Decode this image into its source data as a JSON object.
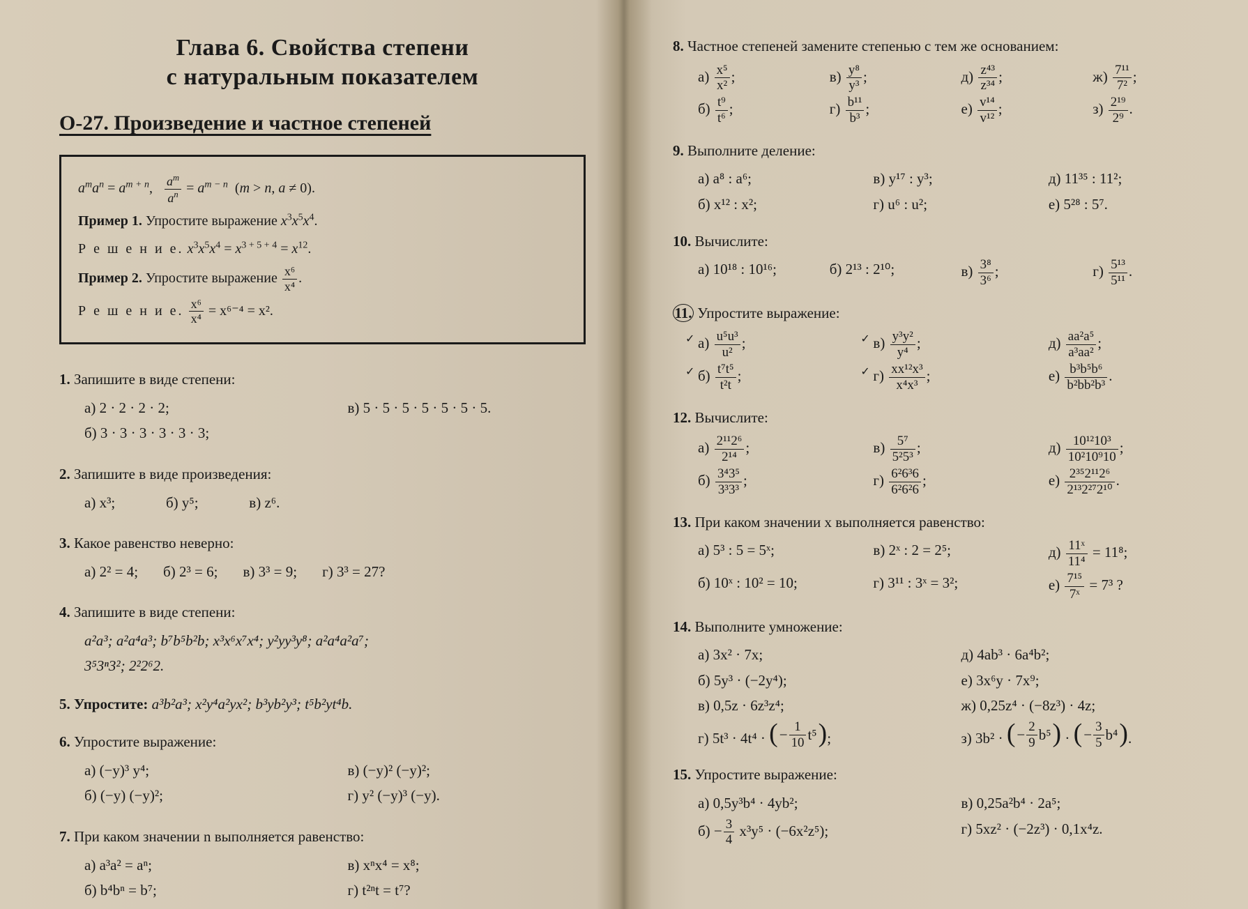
{
  "colors": {
    "paper": "#d4c9b8",
    "ink": "#1a1a1a"
  },
  "typography": {
    "body_pt": 21,
    "h1_pt": 34,
    "h2_pt": 30,
    "boxed_pt": 20
  },
  "left": {
    "chapter_line1": "Глава 6. Свойства степени",
    "chapter_line2": "с натуральным показателем",
    "section": "О-27. Произведение и частное степеней",
    "box": {
      "rule": "aᵐaⁿ = aᵐ⁺ⁿ,   aᵐ / aⁿ = aᵐ⁻ⁿ  (m > n, a ≠ 0).",
      "ex1_label": "Пример 1.",
      "ex1_task": "Упростите выражение x³x⁵x⁴.",
      "ex1_sol_label": "Р е ш е н и е.",
      "ex1_sol": "x³x⁵x⁴ = x³⁺⁵⁺⁴ = x¹².",
      "ex2_label": "Пример 2.",
      "ex2_task_pre": "Упростите выражение",
      "ex2_frac_n": "x⁶",
      "ex2_frac_d": "x⁴",
      "ex2_sol_label": "Р е ш е н и е.",
      "ex2_sol_frac_n": "x⁶",
      "ex2_sol_frac_d": "x⁴",
      "ex2_sol_tail": "= x⁶⁻⁴ = x²."
    },
    "p1": {
      "num": "1.",
      "head": "Запишите в виде степени:",
      "a": "а) 2 · 2 · 2 · 2;",
      "v": "в) 5 · 5 · 5 · 5 · 5 · 5 · 5.",
      "b": "б) 3 · 3 · 3 · 3 · 3 · 3;"
    },
    "p2": {
      "num": "2.",
      "head": "Запишите в виде произведения:",
      "a": "а) x³;",
      "b": "б) y⁵;",
      "v": "в) z⁶."
    },
    "p3": {
      "num": "3.",
      "head": "Какое равенство неверно:",
      "a": "а) 2² = 4;",
      "b": "б) 2³ = 6;",
      "v": "в) 3³ = 9;",
      "g": "г) 3³ = 27?"
    },
    "p4": {
      "num": "4.",
      "head": "Запишите в виде степени:",
      "line1": "a²a³;   a²a⁴a³;   b⁷b⁵b²b;   x³x⁶x⁷x⁴;   y²yy³y⁸;   a²a⁴a²a⁷;",
      "line2": "3⁵3ⁿ3²;   2²2⁶2."
    },
    "p5": {
      "num": "5.",
      "head": "Упростите:",
      "body": "a³b²a³;   x²y⁴a²yx²;   b³yb²y³;   t⁵b²yt⁴b."
    },
    "p6": {
      "num": "6.",
      "head": "Упростите выражение:",
      "a": "а) (−y)³ y⁴;",
      "v": "в) (−y)² (−y)²;",
      "b": "б) (−y) (−y)²;",
      "g": "г) y² (−y)³ (−y)."
    },
    "p7": {
      "num": "7.",
      "head": "При каком значении n выполняется равенство:",
      "a": "а) a³a² = aⁿ;",
      "v": "в) xⁿx⁴ = x⁸;",
      "b": "б) b⁴bⁿ = b⁷;",
      "g": "г) t²ⁿt = t⁷?"
    }
  },
  "right": {
    "p8": {
      "num": "8.",
      "head": "Частное степеней замените степенью с тем же основа­нием:",
      "a": {
        "l": "а)",
        "n": "x⁵",
        "d": "x²"
      },
      "v": {
        "l": "в)",
        "n": "y⁸",
        "d": "y³"
      },
      "d": {
        "l": "д)",
        "n": "z⁴³",
        "d": "z³⁴"
      },
      "zh": {
        "l": "ж)",
        "n": "7¹¹",
        "d": "7²"
      },
      "b": {
        "l": "б)",
        "n": "t⁹",
        "d": "t⁶"
      },
      "g": {
        "l": "г)",
        "n": "b¹¹",
        "d": "b³"
      },
      "e": {
        "l": "е)",
        "n": "v¹⁴",
        "d": "v¹²"
      },
      "z": {
        "l": "з)",
        "n": "2¹⁹",
        "d": "2⁹"
      }
    },
    "p9": {
      "num": "9.",
      "head": "Выполните деление:",
      "a": "а) a⁸ : a⁶;",
      "v": "в) y¹⁷ : y³;",
      "d": "д) 11³⁵ : 11²;",
      "b": "б) x¹² : x²;",
      "g": "г) u⁶ : u²;",
      "e": "е) 5²⁸ : 5⁷."
    },
    "p10": {
      "num": "10.",
      "head": "Вычислите:",
      "a": "а) 10¹⁸ : 10¹⁶;",
      "b": "б) 2¹³ : 2¹⁰;",
      "v": {
        "l": "в)",
        "n": "3⁸",
        "d": "3⁶"
      },
      "g": {
        "l": "г)",
        "n": "5¹³",
        "d": "5¹¹"
      }
    },
    "p11": {
      "num": "11.",
      "head": "Упростите выражение:",
      "a": {
        "l": "а)",
        "n": "u⁵u³",
        "d": "u²"
      },
      "v": {
        "l": "в)",
        "n": "y³y²",
        "d": "y⁴"
      },
      "d": {
        "l": "д)",
        "n": "aa²a⁵",
        "d": "a³aa²"
      },
      "b": {
        "l": "б)",
        "n": "t⁷t⁵",
        "d": "t²t"
      },
      "g": {
        "l": "г)",
        "n": "xx¹²x³",
        "d": "x⁴x³"
      },
      "e": {
        "l": "е)",
        "n": "b³b⁵b⁶",
        "d": "b²bb²b³"
      }
    },
    "p12": {
      "num": "12.",
      "head": "Вычислите:",
      "a": {
        "l": "а)",
        "n": "2¹¹2⁶",
        "d": "2¹⁴"
      },
      "v": {
        "l": "в)",
        "n": "5⁷",
        "d": "5²5³"
      },
      "d": {
        "l": "д)",
        "n": "10¹²10³",
        "d": "10²10⁹10"
      },
      "b": {
        "l": "б)",
        "n": "3⁴3⁵",
        "d": "3³3³"
      },
      "g": {
        "l": "г)",
        "n": "6²6³6",
        "d": "6²6²6"
      },
      "e": {
        "l": "е)",
        "n": "2³⁵2¹¹2⁶",
        "d": "2¹³2²⁷2¹⁰"
      }
    },
    "p13": {
      "num": "13.",
      "head": "При каком значении x выполняется равенство:",
      "a": "а) 5³ : 5 = 5ˣ;",
      "v": "в) 2ˣ : 2 = 2⁵;",
      "d": {
        "l": "д)",
        "n": "11ˣ",
        "d": "11⁴",
        "t": "= 11⁸;"
      },
      "b": "б) 10ˣ : 10² = 10;",
      "g": "г) 3¹¹ : 3ˣ = 3²;",
      "e": {
        "l": "е)",
        "n": "7¹⁵",
        "d": "7ˣ",
        "t": "= 7³ ?"
      }
    },
    "p14": {
      "num": "14.",
      "head": "Выполните умножение:",
      "a": "а) 3x² · 7x;",
      "d": "д) 4ab³ · 6a⁴b²;",
      "b": "б) 5y³ · (−2y⁴);",
      "e": "е) 3x⁶y · 7x⁹;",
      "v": "в) 0,5z · 6z³z⁴;",
      "zh": "ж) 0,25z⁴ · (−8z³) · 4z;",
      "g_pre": "г) 5t³ · 4t⁴ ·",
      "g_inner_pre": "−",
      "g_inner_n": "1",
      "g_inner_d": "10",
      "g_inner_post": "t⁵",
      "g_after": ";",
      "z_pre": "з) 3b² ·",
      "z_p1_pre": "−",
      "z_p1_n": "2",
      "z_p1_d": "9",
      "z_p1_post": "b⁵",
      "z_mid": "·",
      "z_p2_pre": "−",
      "z_p2_n": "3",
      "z_p2_d": "5",
      "z_p2_post": "b⁴",
      "z_after": "."
    },
    "p15": {
      "num": "15.",
      "head": "Упростите выражение:",
      "a": "а) 0,5y³b⁴ · 4yb²;",
      "v": "в) 0,25a²b⁴ · 2a⁵;",
      "b_pre": "б) −",
      "b_n": "3",
      "b_d": "4",
      "b_mid": "x³y⁵ · (−6x²z⁵);",
      "g": "г) 5xz² · (−2z³) · 0,1x⁴z."
    }
  }
}
